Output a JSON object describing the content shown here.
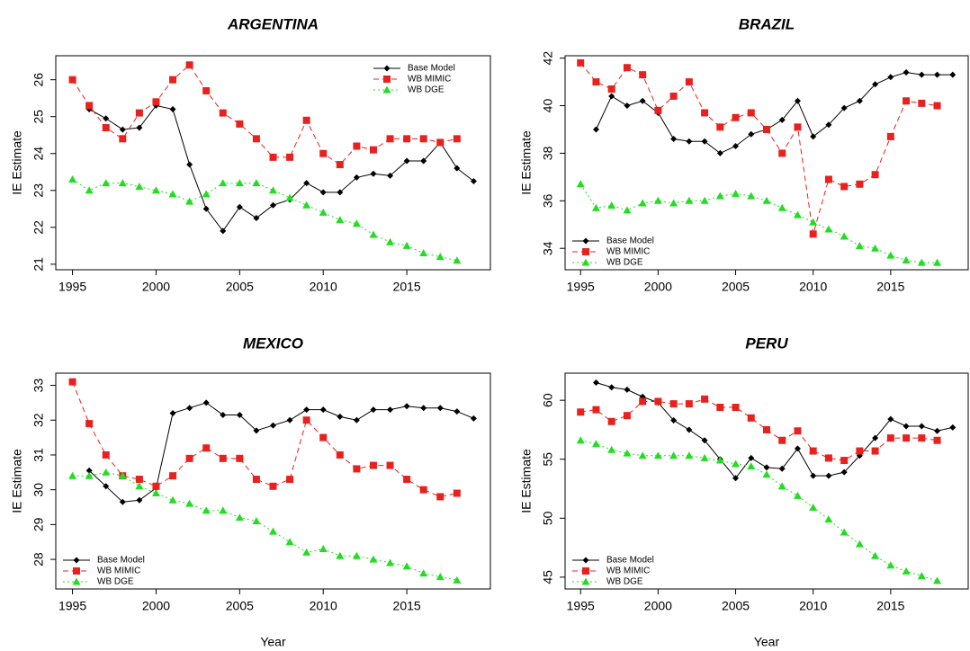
{
  "chart_data": [
    {
      "type": "line",
      "title": "ARGENTINA",
      "ylabel": "IE Estimate",
      "x": [
        1995,
        1996,
        1997,
        1998,
        1999,
        2000,
        2001,
        2002,
        2003,
        2004,
        2005,
        2006,
        2007,
        2008,
        2009,
        2010,
        2011,
        2012,
        2013,
        2014,
        2015,
        2016,
        2017,
        2018,
        2019
      ],
      "series": [
        {
          "name": "Base Model",
          "color": "#000000",
          "values": [
            null,
            25.2,
            24.95,
            24.65,
            24.7,
            25.3,
            25.2,
            23.7,
            22.5,
            21.9,
            22.55,
            22.25,
            22.6,
            22.75,
            23.2,
            22.95,
            22.95,
            23.35,
            23.45,
            23.4,
            23.8,
            23.8,
            24.3,
            23.6,
            23.25
          ]
        },
        {
          "name": "WB MIMIC",
          "color": "#e8211f",
          "values": [
            26.0,
            25.3,
            24.7,
            24.4,
            25.1,
            25.4,
            26.0,
            26.4,
            25.7,
            25.1,
            24.8,
            24.4,
            23.9,
            23.9,
            24.9,
            24.0,
            23.7,
            24.2,
            24.1,
            24.4,
            24.4,
            24.4,
            24.3,
            24.4,
            null
          ]
        },
        {
          "name": "WB DGE",
          "color": "#22dd22",
          "values": [
            23.3,
            23.0,
            23.2,
            23.2,
            23.1,
            23.0,
            22.9,
            22.7,
            22.9,
            23.2,
            23.2,
            23.2,
            23.0,
            22.8,
            22.6,
            22.4,
            22.2,
            22.1,
            21.8,
            21.6,
            21.5,
            21.3,
            21.2,
            21.1,
            null
          ]
        }
      ],
      "xlim": [
        1994,
        2020
      ],
      "xticks": [
        1995,
        2000,
        2005,
        2010,
        2015
      ],
      "ylim": [
        20.85,
        26.65
      ],
      "yticks": [
        21,
        22,
        23,
        24,
        25,
        26
      ],
      "legend": "topright"
    },
    {
      "type": "line",
      "title": "BRAZIL",
      "ylabel": "IE Estimate",
      "x": [
        1995,
        1996,
        1997,
        1998,
        1999,
        2000,
        2001,
        2002,
        2003,
        2004,
        2005,
        2006,
        2007,
        2008,
        2009,
        2010,
        2011,
        2012,
        2013,
        2014,
        2015,
        2016,
        2017,
        2018,
        2019
      ],
      "series": [
        {
          "name": "Base Model",
          "color": "#000000",
          "values": [
            null,
            39.0,
            40.4,
            40.0,
            40.2,
            39.7,
            38.6,
            38.5,
            38.5,
            38.0,
            38.3,
            38.8,
            39.0,
            39.4,
            40.2,
            38.7,
            39.2,
            39.9,
            40.2,
            40.9,
            41.2,
            41.4,
            41.3,
            41.3,
            41.3
          ]
        },
        {
          "name": "WB MIMIC",
          "color": "#e8211f",
          "values": [
            41.8,
            41.0,
            40.7,
            41.6,
            41.3,
            39.8,
            40.4,
            41.0,
            39.7,
            39.1,
            39.5,
            39.7,
            39.0,
            38.0,
            39.1,
            34.6,
            36.9,
            36.6,
            36.7,
            37.1,
            38.7,
            40.2,
            40.1,
            40.0,
            null
          ]
        },
        {
          "name": "WB DGE",
          "color": "#22dd22",
          "values": [
            36.7,
            35.7,
            35.8,
            35.6,
            35.9,
            36.0,
            35.9,
            36.0,
            36.0,
            36.2,
            36.3,
            36.2,
            36.0,
            35.7,
            35.4,
            35.1,
            34.8,
            34.5,
            34.1,
            34.0,
            33.7,
            33.5,
            33.4,
            33.4,
            null
          ]
        }
      ],
      "xlim": [
        1994,
        2020
      ],
      "xticks": [
        1995,
        2000,
        2005,
        2010,
        2015
      ],
      "ylim": [
        33.1,
        42.1
      ],
      "yticks": [
        34,
        36,
        38,
        40,
        42
      ],
      "legend": "bottomleft"
    },
    {
      "type": "line",
      "title": "MEXICO",
      "ylabel": "IE Estimate",
      "xlabel": "Year",
      "x": [
        1995,
        1996,
        1997,
        1998,
        1999,
        2000,
        2001,
        2002,
        2003,
        2004,
        2005,
        2006,
        2007,
        2008,
        2009,
        2010,
        2011,
        2012,
        2013,
        2014,
        2015,
        2016,
        2017,
        2018,
        2019
      ],
      "series": [
        {
          "name": "Base Model",
          "color": "#000000",
          "values": [
            null,
            30.55,
            30.1,
            29.65,
            29.7,
            30.05,
            32.2,
            32.35,
            32.5,
            32.15,
            32.15,
            31.7,
            31.85,
            32.0,
            32.3,
            32.3,
            32.1,
            32.0,
            32.3,
            32.3,
            32.4,
            32.35,
            32.35,
            32.25,
            32.05
          ]
        },
        {
          "name": "WB MIMIC",
          "color": "#e8211f",
          "values": [
            33.1,
            31.9,
            31.0,
            30.4,
            30.3,
            30.1,
            30.4,
            30.9,
            31.2,
            30.9,
            30.9,
            30.3,
            30.1,
            30.3,
            32.0,
            31.5,
            31.0,
            30.6,
            30.7,
            30.7,
            30.3,
            30.0,
            29.8,
            29.9,
            null
          ]
        },
        {
          "name": "WB DGE",
          "color": "#22dd22",
          "values": [
            30.4,
            30.4,
            30.5,
            30.4,
            30.1,
            29.9,
            29.7,
            29.6,
            29.4,
            29.4,
            29.2,
            29.1,
            28.8,
            28.5,
            28.2,
            28.3,
            28.1,
            28.1,
            28.0,
            27.9,
            27.8,
            27.6,
            27.5,
            27.4,
            null
          ]
        }
      ],
      "xlim": [
        1994,
        2020
      ],
      "xticks": [
        1995,
        2000,
        2005,
        2010,
        2015
      ],
      "ylim": [
        27.15,
        33.35
      ],
      "yticks": [
        28,
        29,
        30,
        31,
        32,
        33
      ],
      "legend": "bottomleft"
    },
    {
      "type": "line",
      "title": "PERU",
      "ylabel": "IE Estimate",
      "xlabel": "Year",
      "x": [
        1995,
        1996,
        1997,
        1998,
        1999,
        2000,
        2001,
        2002,
        2003,
        2004,
        2005,
        2006,
        2007,
        2008,
        2009,
        2010,
        2011,
        2012,
        2013,
        2014,
        2015,
        2016,
        2017,
        2018,
        2019
      ],
      "series": [
        {
          "name": "Base Model",
          "color": "#000000",
          "values": [
            null,
            61.5,
            61.1,
            60.9,
            60.3,
            59.8,
            58.3,
            57.5,
            56.6,
            55.0,
            53.4,
            55.1,
            54.3,
            54.2,
            55.9,
            53.6,
            53.6,
            53.9,
            55.3,
            56.8,
            58.4,
            57.8,
            57.8,
            57.4,
            57.7
          ]
        },
        {
          "name": "WB MIMIC",
          "color": "#e8211f",
          "values": [
            59.0,
            59.2,
            58.2,
            58.7,
            59.9,
            59.9,
            59.7,
            59.7,
            60.1,
            59.4,
            59.4,
            58.5,
            57.5,
            56.6,
            57.4,
            55.7,
            55.1,
            54.9,
            55.7,
            55.7,
            56.8,
            56.8,
            56.8,
            56.6,
            null
          ]
        },
        {
          "name": "WB DGE",
          "color": "#22dd22",
          "values": [
            56.6,
            56.3,
            55.8,
            55.5,
            55.3,
            55.3,
            55.3,
            55.3,
            55.1,
            54.9,
            54.6,
            54.4,
            53.7,
            52.7,
            51.9,
            50.9,
            49.9,
            48.8,
            47.8,
            46.8,
            46.0,
            45.5,
            45.1,
            44.7,
            null
          ]
        }
      ],
      "xlim": [
        1994,
        2020
      ],
      "xticks": [
        1995,
        2000,
        2005,
        2010,
        2015
      ],
      "ylim": [
        44.0,
        62.3
      ],
      "yticks": [
        45,
        50,
        55,
        60
      ],
      "legend": "bottomleft"
    }
  ]
}
